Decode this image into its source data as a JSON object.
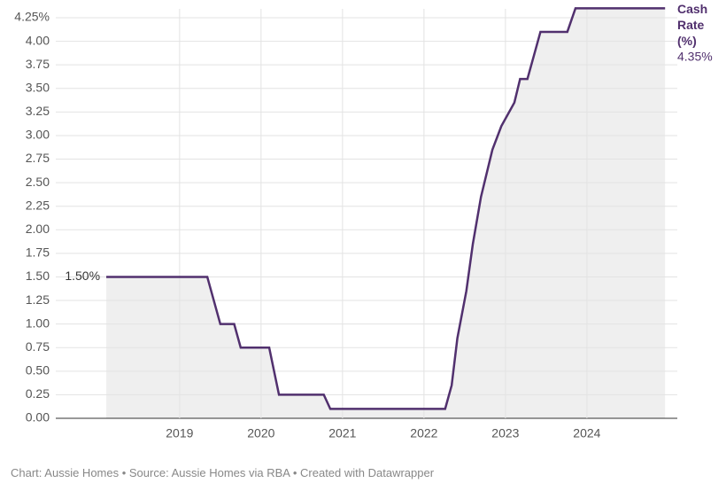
{
  "chart_data": {
    "type": "line",
    "x": [
      2018.1,
      2019.34,
      2019.42,
      2019.5,
      2019.67,
      2019.75,
      2020.1,
      2020.16,
      2020.22,
      2020.77,
      2020.85,
      2022.26,
      2022.34,
      2022.41,
      2022.52,
      2022.6,
      2022.7,
      2022.84,
      2022.95,
      2023.11,
      2023.18,
      2023.27,
      2023.35,
      2023.43,
      2023.76,
      2023.86,
      2024.96
    ],
    "series": [
      {
        "name": "Cash Rate (%)",
        "color": "#51306e",
        "values": [
          1.5,
          1.5,
          1.25,
          1.0,
          1.0,
          0.75,
          0.75,
          0.5,
          0.25,
          0.25,
          0.1,
          0.1,
          0.35,
          0.85,
          1.35,
          1.85,
          2.35,
          2.85,
          3.1,
          3.35,
          3.6,
          3.6,
          3.85,
          4.1,
          4.1,
          4.35,
          4.35
        ],
        "value_labels": [
          "1.50%",
          null,
          null,
          null,
          null,
          null,
          null,
          null,
          null,
          null,
          null,
          null,
          null,
          null,
          null,
          null,
          null,
          null,
          null,
          null,
          null,
          null,
          null,
          null,
          null,
          null,
          "4.35%"
        ]
      }
    ],
    "area": true,
    "area_color": "#efefef",
    "xlim": [
      2017.48,
      2025.11
    ],
    "xticks": [
      2019,
      2020,
      2021,
      2022,
      2023,
      2024
    ],
    "ylim": [
      0,
      4.25
    ],
    "yticks": [
      {
        "value": 0,
        "label": "0.00"
      },
      {
        "value": 0.25,
        "label": "0.25"
      },
      {
        "value": 0.5,
        "label": "0.50"
      },
      {
        "value": 0.75,
        "label": "0.75"
      },
      {
        "value": 1,
        "label": "1.00"
      },
      {
        "value": 1.25,
        "label": "1.25"
      },
      {
        "value": 1.5,
        "label": "1.50"
      },
      {
        "value": 1.75,
        "label": "1.75"
      },
      {
        "value": 2,
        "label": "2.00"
      },
      {
        "value": 2.25,
        "label": "2.25"
      },
      {
        "value": 2.5,
        "label": "2.50"
      },
      {
        "value": 2.75,
        "label": "2.75"
      },
      {
        "value": 3,
        "label": "3.00"
      },
      {
        "value": 3.25,
        "label": "3.25"
      },
      {
        "value": 3.5,
        "label": "3.50"
      },
      {
        "value": 3.75,
        "label": "3.75"
      },
      {
        "value": 4,
        "label": "4.00"
      },
      {
        "value": 4.25,
        "label": "4.25%"
      }
    ],
    "grid": true,
    "source": "Chart: Aussie Homes • Source: Aussie Homes via RBA • Created with Datawrapper"
  }
}
